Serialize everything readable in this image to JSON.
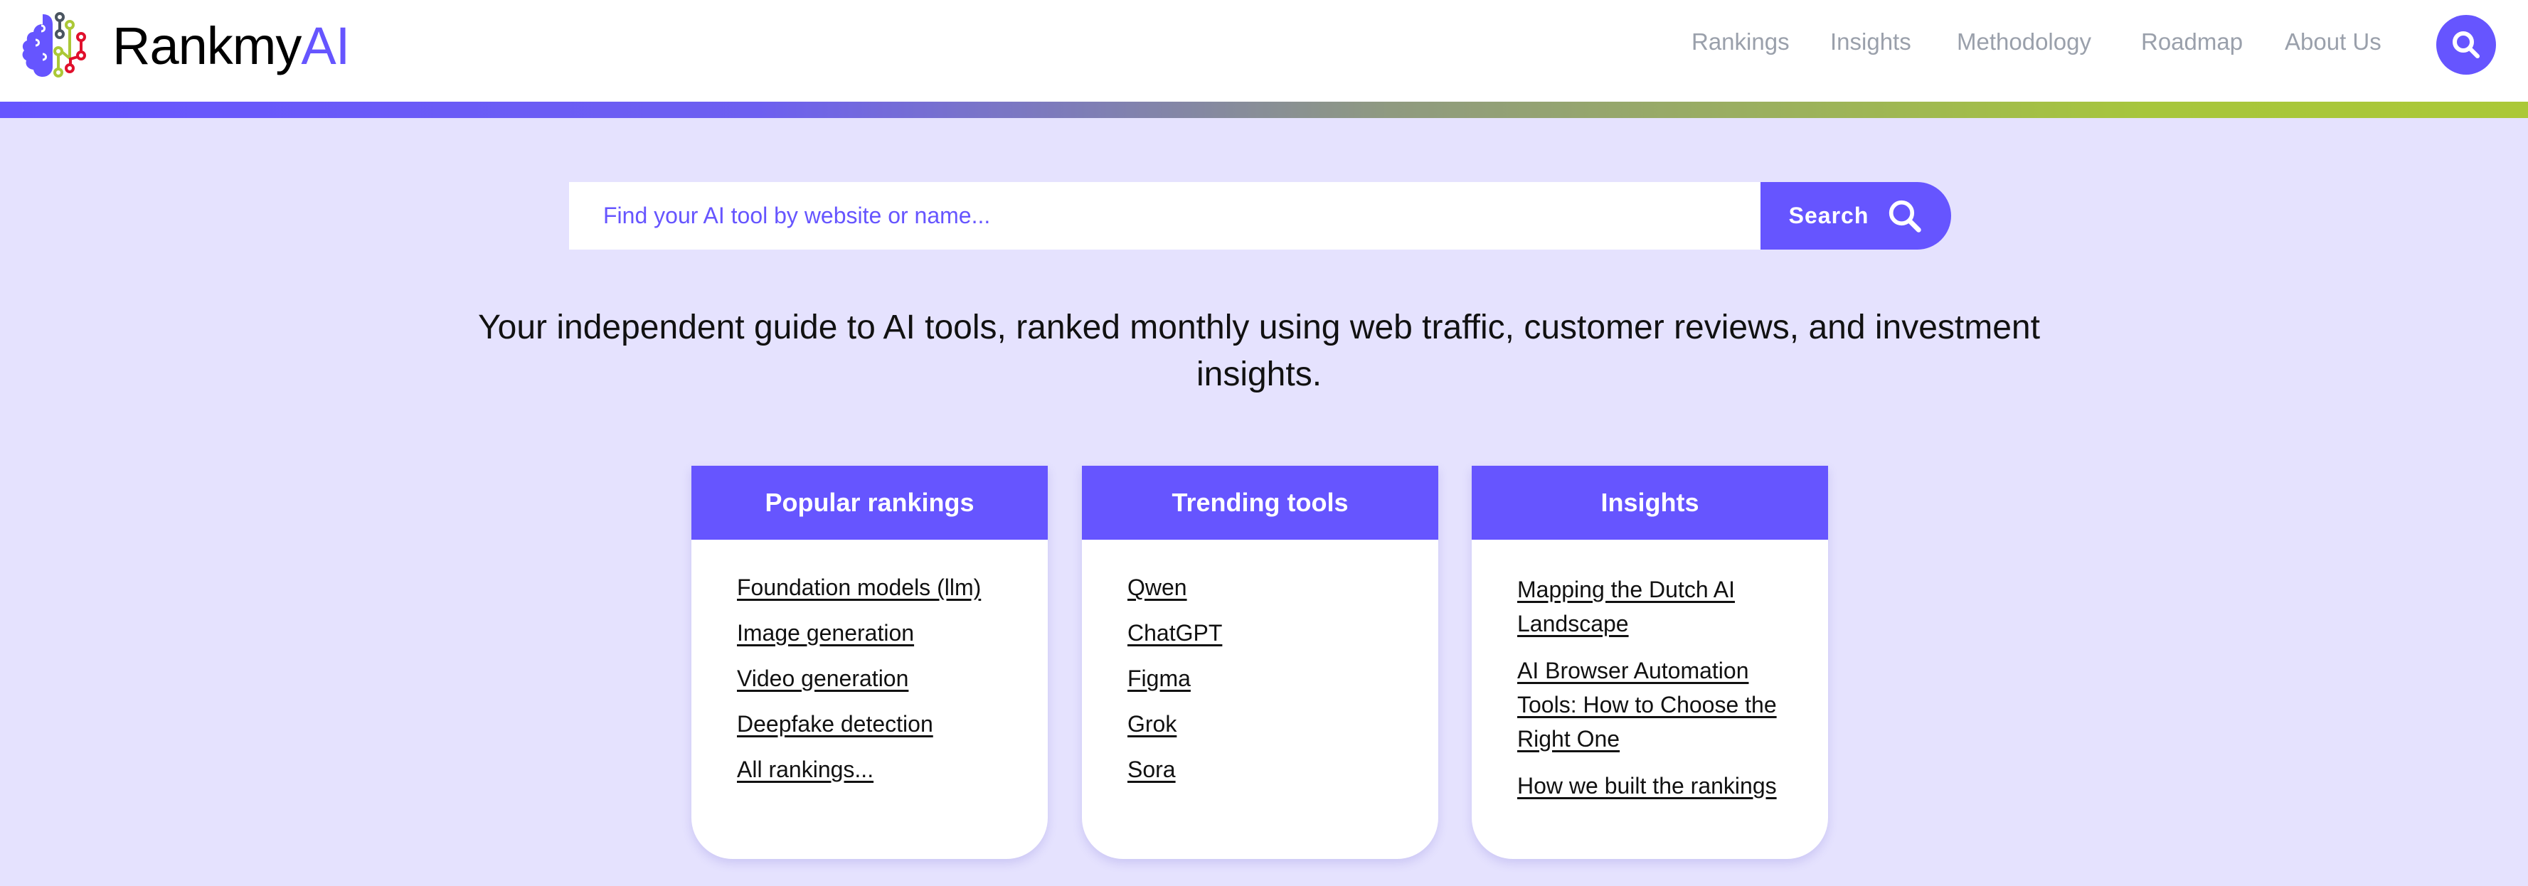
{
  "brand": {
    "name_main": "Rankmy",
    "name_accent": "AI",
    "accent_color": "#6655ff",
    "highlight_color": "#abc837"
  },
  "nav": {
    "items": [
      {
        "label": "Rankings"
      },
      {
        "label": "Insights"
      },
      {
        "label": "Methodology"
      },
      {
        "label": "Roadmap"
      },
      {
        "label": "About Us"
      }
    ],
    "search_icon": "search-icon"
  },
  "search": {
    "placeholder": "Find your AI tool by website or name...",
    "button_label": "Search"
  },
  "tagline": "Your independent guide to AI tools, ranked monthly using  web traffic, customer reviews, and investment insights.",
  "cards": [
    {
      "title": "Popular rankings",
      "links": [
        "Foundation models (llm)",
        "Image generation",
        "Video generation",
        "Deepfake detection",
        "All rankings..."
      ]
    },
    {
      "title": "Trending tools",
      "links": [
        "Qwen",
        "ChatGPT",
        "Figma",
        "Grok",
        "Sora"
      ]
    },
    {
      "title": "Insights",
      "links": [
        "Mapping the Dutch AI Landscape",
        "AI Browser Automation Tools: How to Choose the Right One",
        "How we built the rankings"
      ]
    }
  ]
}
